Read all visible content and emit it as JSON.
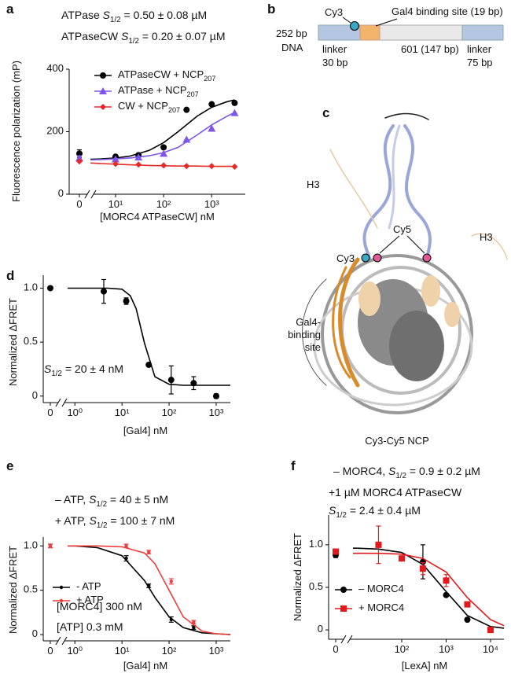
{
  "chart_data": [
    {
      "label": "a",
      "type": "scatter",
      "xscale": "log",
      "x_break": true,
      "x_label": "[MORC4 ATPaseCW] nM",
      "y_label": "Fluorescence polarization (mP)",
      "annotations": [
        "ATPase S1/2 = 0.50 ± 0.08 µM",
        "ATPaseCW S1/2 = 0.20 ± 0.07 µM"
      ],
      "x": [
        0,
        10,
        30,
        100,
        300,
        1000,
        3000
      ],
      "xlim": [
        3,
        5000
      ],
      "ylim": [
        0,
        400
      ],
      "xticks": [
        0,
        {
          "value": 10,
          "label": "10¹"
        },
        {
          "value": 100,
          "label": "10²"
        },
        {
          "value": 1000,
          "label": "10³"
        }
      ],
      "yticks": [
        0,
        200,
        400
      ],
      "series": [
        {
          "name": "ATPaseCW + NCP207",
          "color": "#000000",
          "marker": "circle",
          "values": [
            130,
            120,
            125,
            150,
            270,
            288,
            292
          ],
          "errors": [
            12,
            null,
            null,
            null,
            null,
            null,
            null
          ],
          "fit_x": [
            3,
            5,
            10,
            20,
            50,
            100,
            200,
            500,
            1000,
            2000,
            3000
          ],
          "fit_values": [
            112,
            113,
            116,
            122,
            140,
            165,
            200,
            250,
            278,
            295,
            302
          ]
        },
        {
          "name": "ATPase + NCP207",
          "color": "#7d55ea",
          "marker": "triangle",
          "values": [
            115,
            112,
            118,
            130,
            175,
            210,
            260
          ],
          "errors": [
            8,
            null,
            null,
            null,
            null,
            null,
            null
          ],
          "fit_x": [
            3,
            5,
            10,
            20,
            50,
            100,
            200,
            500,
            1000,
            2000,
            3000
          ],
          "fit_values": [
            110,
            111,
            113,
            116,
            123,
            133,
            150,
            190,
            222,
            248,
            262
          ]
        },
        {
          "name": "CW + NCP207",
          "color": "#e62b2b",
          "marker": "diamond",
          "values": [
            105,
            97,
            95,
            92,
            90,
            90,
            88
          ],
          "fit_x": [
            3,
            5,
            10,
            20,
            50,
            100,
            200,
            500,
            1000,
            2000,
            3000
          ],
          "fit_values": [
            100,
            98,
            96,
            94,
            92,
            91,
            90,
            90,
            89,
            89,
            89
          ]
        }
      ]
    },
    {
      "label": "d",
      "type": "scatter",
      "xscale": "log",
      "x_break": true,
      "x_label": "[Gal4] nM",
      "y_label": "Normalized ΔFRET",
      "annotations": [
        "S1/2 = 20 ± 4 nM"
      ],
      "x": [
        0,
        4.1,
        12.3,
        37,
        111,
        333,
        1000
      ],
      "xlim": [
        0.7,
        2000
      ],
      "ylim": [
        -0.06,
        1.12
      ],
      "xticks": [
        0,
        {
          "value": 1,
          "label": "10⁰"
        },
        {
          "value": 10,
          "label": "10¹"
        },
        {
          "value": 100,
          "label": "10²"
        },
        {
          "value": 1000,
          "label": "10³"
        }
      ],
      "yticks": [
        0,
        0.5,
        {
          "value": 1,
          "label": "1.0"
        }
      ],
      "series": [
        {
          "color": "#000000",
          "marker": "circle",
          "values": [
            1,
            0.97,
            0.88,
            0.29,
            0.15,
            0.12,
            0
          ],
          "errors": [
            null,
            0.11,
            0.03,
            null,
            0.13,
            0.06,
            0.02
          ],
          "fit_x": [
            0.7,
            1,
            2,
            5,
            10,
            15,
            20,
            30,
            50,
            100,
            200,
            500,
            1000,
            2000
          ],
          "fit_values": [
            1,
            1,
            1,
            1,
            0.99,
            0.93,
            0.81,
            0.49,
            0.18,
            0.11,
            0.1,
            0.1,
            0.1,
            0.1
          ]
        }
      ]
    },
    {
      "label": "e",
      "type": "scatter",
      "xscale": "log",
      "x_break": true,
      "x_label": "[Gal4] nM",
      "y_label": "Normalized ΔFRET",
      "annotations": [
        "– ATP, S1/2 = 40 ± 5 nM",
        "+ ATP, S1/2 = 100 ± 7 nM",
        "[MORC4] 300 nM",
        "[ATP] 0.3 mM"
      ],
      "x": [
        0,
        12.3,
        37,
        111,
        333
      ],
      "xlim": [
        0.7,
        2000
      ],
      "ylim": [
        -0.07,
        1.1
      ],
      "xticks": [
        0,
        {
          "value": 1,
          "label": "10⁰"
        },
        {
          "value": 10,
          "label": "10¹"
        },
        {
          "value": 100,
          "label": "10²"
        },
        {
          "value": 1000,
          "label": "10³"
        }
      ],
      "yticks": [
        0,
        0.5,
        {
          "value": 1,
          "label": "1.0"
        }
      ],
      "series": [
        {
          "name": "- ATP",
          "color": "#000000",
          "marker": "dot",
          "values": [
            1,
            0.86,
            0.55,
            0.17,
            0.08
          ],
          "errors": [
            0.02,
            0.03,
            0.02,
            0.03,
            0.02
          ],
          "fit_x": [
            0.7,
            1,
            3,
            10,
            30,
            50,
            100,
            200,
            500,
            1000,
            2000
          ],
          "fit_values": [
            1,
            1,
            0.98,
            0.89,
            0.61,
            0.42,
            0.2,
            0.08,
            0.02,
            0.01,
            0
          ]
        },
        {
          "name": "+ ATP",
          "color": "#f03c3c",
          "marker": "dot",
          "values": [
            1,
            1,
            0.93,
            0.6,
            0.14
          ],
          "errors": [
            0.02,
            0.02,
            0.02,
            0.03,
            0.02
          ],
          "fit_x": [
            0.7,
            1,
            3,
            10,
            30,
            50,
            100,
            200,
            500,
            1000,
            2000
          ],
          "fit_values": [
            1,
            1,
            1,
            0.99,
            0.92,
            0.8,
            0.5,
            0.2,
            0.04,
            0.01,
            0
          ]
        }
      ]
    },
    {
      "label": "f",
      "type": "scatter",
      "xscale": "log",
      "x_break": true,
      "x_label": "[LexA] nM",
      "y_label": "Normalized ΔFRET",
      "annotations": [
        "– MORC4, S1/2 = 0.9 ± 0.2 µM",
        "+1 µM MORC4 ATPaseCW",
        "S1/2 = 2.4 ± 0.4 µM"
      ],
      "x": [
        0,
        30,
        100,
        300,
        1000,
        3000,
        10000
      ],
      "xlim": [
        8,
        20000
      ],
      "ylim": [
        -0.11,
        1.35
      ],
      "xticks": [
        0,
        {
          "value": 100,
          "label": "10²"
        },
        {
          "value": 1000,
          "label": "10³"
        },
        {
          "value": 10000,
          "label": "10⁴"
        }
      ],
      "yticks": [
        0,
        0.5,
        {
          "value": 1,
          "label": "1.0"
        }
      ],
      "series": [
        {
          "name": "– MORC4",
          "color": "#000000",
          "marker": "circle",
          "values": [
            0.88,
            1,
            0.84,
            0.8,
            0.41,
            0.12,
            0
          ],
          "errors": [
            0.03,
            null,
            null,
            0.2,
            null,
            null,
            null
          ],
          "fit_x": [
            8,
            10,
            30,
            100,
            300,
            1000,
            3000,
            10000,
            20000
          ],
          "fit_values": [
            0.96,
            0.96,
            0.95,
            0.91,
            0.77,
            0.45,
            0.17,
            0.04,
            0.02
          ]
        },
        {
          "name": "+ MORC4",
          "color": "#e3191c",
          "marker": "square",
          "values": [
            0.92,
            1,
            0.84,
            0.72,
            0.58,
            0.3,
            0
          ],
          "errors": [
            0.03,
            0.22,
            null,
            0.07,
            0.07,
            null,
            0.03
          ],
          "fit_x": [
            8,
            10,
            30,
            100,
            300,
            1000,
            3000,
            10000,
            20000
          ],
          "fit_values": [
            0.9,
            0.9,
            0.9,
            0.89,
            0.84,
            0.68,
            0.38,
            0.12,
            0.05
          ]
        }
      ]
    }
  ],
  "dna_diagram": {
    "label": "b",
    "dna": [
      "252 bp",
      "DNA"
    ],
    "cy3": "Cy3",
    "gal4_site": "Gal4 binding site (19 bp)",
    "linker_left": [
      "linker",
      "30 bp"
    ],
    "core": "601 (147 bp)",
    "linker_right": [
      "linker",
      "75 bp"
    ]
  },
  "structure": {
    "label": "c",
    "h3_left": "H3",
    "h3_right": "H3",
    "cy5": "Cy5",
    "cy3": "Cy3",
    "gal4_site": [
      "Gal4-",
      "binding",
      "site"
    ],
    "caption": "Cy3-Cy5 NCP"
  }
}
